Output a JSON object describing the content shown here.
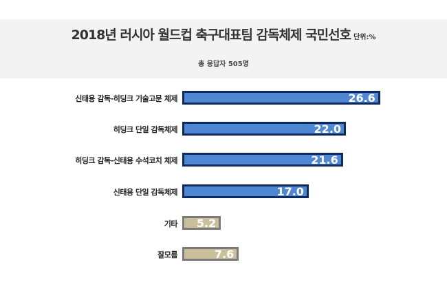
{
  "chart_data": {
    "type": "bar",
    "orientation": "horizontal",
    "title": "2018년 러시아 월드컵 축구대표팀 감독체제 국민선호",
    "unit": "단위:%",
    "subtitle": "총 응답자 505명",
    "categories": [
      "신태용 감독-히딩크 기술고문 체제",
      "히딩크 단일 감독체제",
      "히딩크 감독-신태용 수석코치 체제",
      "신태용 단일 감독체제",
      "기타",
      "잘모름"
    ],
    "values": [
      26.6,
      22.0,
      21.6,
      17.0,
      5.2,
      7.6
    ],
    "value_labels": [
      "26.6",
      "22.0",
      "21.6",
      "17.0",
      "5.2",
      "7.6"
    ],
    "colors": [
      "#4f87d3",
      "#4f87d3",
      "#4f87d3",
      "#4f87d3",
      "#c9bf9a",
      "#c9bf9a"
    ]
  }
}
